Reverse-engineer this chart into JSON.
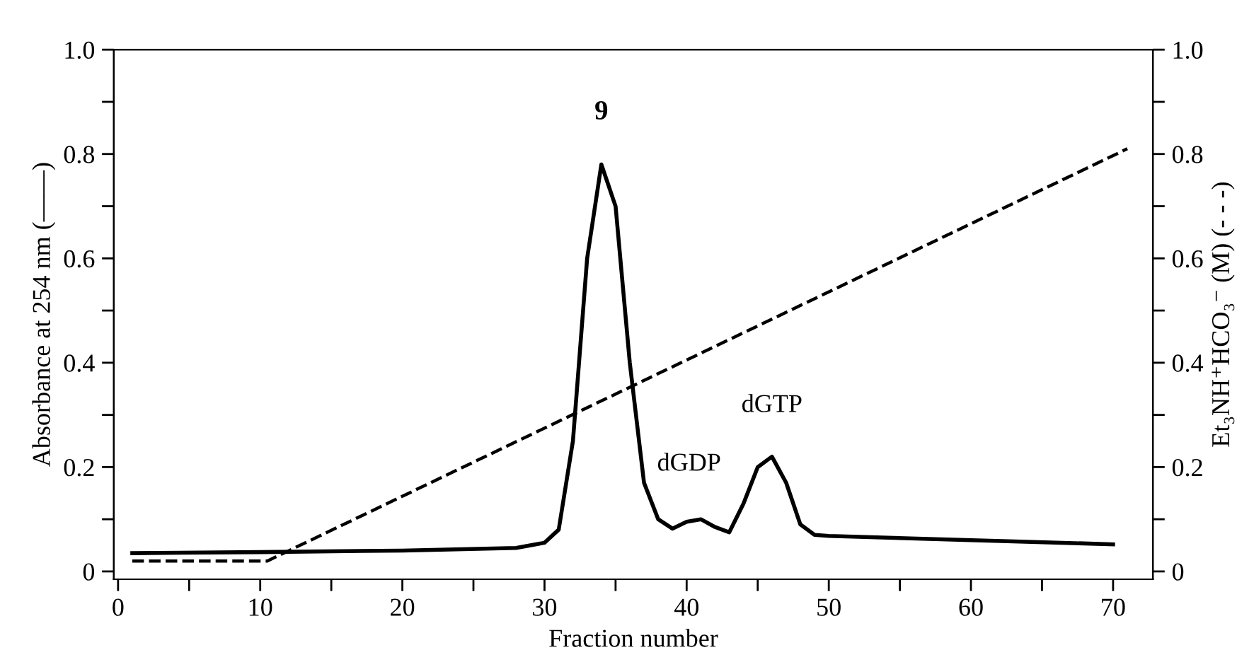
{
  "chart_data": {
    "type": "line",
    "xlabel": "Fraction number",
    "ylabel": "Absorbance at 254 nm (——)",
    "y2label": "Et₃NH⁺HCO₃⁻ (M) (- - -)",
    "xlim": [
      -0.3,
      72.8
    ],
    "ylim": [
      -0.015,
      1.0
    ],
    "y2lim": [
      -0.015,
      1.0
    ],
    "xticks": [
      0,
      {
        "value": 5,
        "label": null
      },
      10,
      {
        "value": 15,
        "label": null
      },
      20,
      {
        "value": 25,
        "label": null
      },
      30,
      {
        "value": 35,
        "label": null
      },
      40,
      {
        "value": 45,
        "label": null
      },
      50,
      {
        "value": 55,
        "label": null
      },
      60,
      {
        "value": 65,
        "label": null
      },
      70
    ],
    "yticks": [
      0,
      {
        "value": 0.1,
        "label": null
      },
      0.2,
      {
        "value": 0.3,
        "label": null
      },
      0.4,
      {
        "value": 0.5,
        "label": null
      },
      0.6,
      {
        "value": 0.7,
        "label": null
      },
      0.8,
      {
        "value": 0.9,
        "label": null
      },
      {
        "value": 1.0,
        "label": "1.0"
      }
    ],
    "y2ticks": [
      0,
      {
        "value": 0.1,
        "label": null
      },
      0.2,
      {
        "value": 0.3,
        "label": null
      },
      0.4,
      {
        "value": 0.5,
        "label": null
      },
      0.6,
      {
        "value": 0.7,
        "label": null
      },
      0.8,
      {
        "value": 0.9,
        "label": null
      },
      {
        "value": 1.0,
        "label": "1.0"
      }
    ],
    "grid": false,
    "legend": false,
    "marker": "none",
    "series": [
      {
        "color": "#000000",
        "line_style": "solid",
        "x": [
          1,
          10,
          20,
          28,
          30,
          31,
          32,
          33,
          34,
          35,
          36,
          37,
          38,
          39,
          40,
          41,
          42,
          43,
          44,
          45,
          46,
          47,
          48,
          49,
          50,
          60,
          70
        ],
        "values": [
          0.035,
          0.037,
          0.04,
          0.045,
          0.055,
          0.08,
          0.25,
          0.6,
          0.78,
          0.7,
          0.4,
          0.17,
          0.1,
          0.082,
          0.095,
          0.1,
          0.085,
          0.075,
          0.13,
          0.2,
          0.22,
          0.17,
          0.09,
          0.07,
          0.068,
          0.06,
          0.052
        ]
      },
      {
        "color": "#000000",
        "line_style": "dashed",
        "x": [
          1,
          10.5,
          71
        ],
        "values": [
          0.02,
          0.02,
          0.81
        ]
      }
    ],
    "annotations": [
      "9",
      "dGDP",
      "dGTP"
    ]
  }
}
